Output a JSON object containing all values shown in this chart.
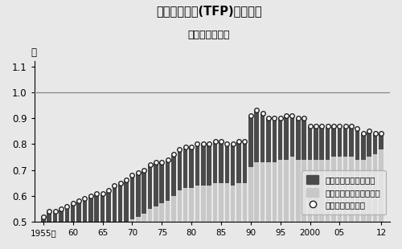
{
  "title_line1": "全要素生産性(TFP)の日米比",
  "title_line2": "（日本／米国）",
  "ylabel": "倍",
  "ylim": [
    0.5,
    1.12
  ],
  "yticks": [
    0.5,
    0.6,
    0.7,
    0.8,
    0.9,
    1.0,
    1.1
  ],
  "xlabel_ticks": [
    "1955年",
    "60",
    "65",
    "70",
    "75",
    "80",
    "85",
    "90",
    "95",
    "2000",
    "05",
    "12"
  ],
  "xlabel_tick_pos": [
    1955,
    1960,
    1965,
    1970,
    1975,
    1980,
    1985,
    1990,
    1995,
    2000,
    2005,
    2012
  ],
  "years": [
    1955,
    1956,
    1957,
    1958,
    1959,
    1960,
    1961,
    1962,
    1963,
    1964,
    1965,
    1966,
    1967,
    1968,
    1969,
    1970,
    1971,
    1972,
    1973,
    1974,
    1975,
    1976,
    1977,
    1978,
    1979,
    1980,
    1981,
    1982,
    1983,
    1984,
    1985,
    1986,
    1987,
    1988,
    1989,
    1990,
    1991,
    1992,
    1993,
    1994,
    1995,
    1996,
    1997,
    1998,
    1999,
    2000,
    2001,
    2002,
    2003,
    2004,
    2005,
    2006,
    2007,
    2008,
    2009,
    2010,
    2011,
    2012
  ],
  "nonmanufacturing": [
    0.32,
    0.33,
    0.33,
    0.34,
    0.35,
    0.36,
    0.37,
    0.38,
    0.39,
    0.4,
    0.41,
    0.42,
    0.44,
    0.46,
    0.48,
    0.51,
    0.52,
    0.53,
    0.55,
    0.56,
    0.57,
    0.58,
    0.6,
    0.62,
    0.63,
    0.63,
    0.64,
    0.64,
    0.64,
    0.65,
    0.65,
    0.65,
    0.64,
    0.65,
    0.65,
    0.71,
    0.73,
    0.73,
    0.73,
    0.73,
    0.74,
    0.74,
    0.75,
    0.74,
    0.74,
    0.74,
    0.74,
    0.74,
    0.74,
    0.75,
    0.75,
    0.75,
    0.75,
    0.74,
    0.74,
    0.75,
    0.76,
    0.78
  ],
  "manufacturing": [
    0.2,
    0.21,
    0.21,
    0.21,
    0.21,
    0.21,
    0.21,
    0.21,
    0.21,
    0.21,
    0.2,
    0.2,
    0.2,
    0.19,
    0.18,
    0.17,
    0.17,
    0.17,
    0.17,
    0.17,
    0.16,
    0.16,
    0.16,
    0.16,
    0.16,
    0.16,
    0.16,
    0.16,
    0.16,
    0.16,
    0.16,
    0.15,
    0.16,
    0.16,
    0.16,
    0.2,
    0.2,
    0.19,
    0.17,
    0.17,
    0.16,
    0.17,
    0.16,
    0.16,
    0.16,
    0.13,
    0.13,
    0.13,
    0.13,
    0.12,
    0.12,
    0.12,
    0.12,
    0.12,
    0.1,
    0.1,
    0.08,
    0.06
  ],
  "total": [
    0.52,
    0.54,
    0.54,
    0.55,
    0.56,
    0.57,
    0.58,
    0.59,
    0.6,
    0.61,
    0.61,
    0.62,
    0.64,
    0.65,
    0.66,
    0.68,
    0.69,
    0.7,
    0.72,
    0.73,
    0.73,
    0.74,
    0.76,
    0.78,
    0.79,
    0.79,
    0.8,
    0.8,
    0.8,
    0.81,
    0.81,
    0.8,
    0.8,
    0.81,
    0.81,
    0.91,
    0.93,
    0.92,
    0.9,
    0.9,
    0.9,
    0.91,
    0.91,
    0.9,
    0.9,
    0.87,
    0.87,
    0.87,
    0.87,
    0.87,
    0.87,
    0.87,
    0.87,
    0.86,
    0.84,
    0.85,
    0.84,
    0.84
  ],
  "background_color": "#e8e8e8",
  "bar_color_manuf": "#4a4a4a",
  "bar_color_nonmanuf": "#c8c8c8",
  "circle_facecolor": "#ffffff",
  "circle_edgecolor": "#222222",
  "legend_label_manuf": "製造業に起因する部分",
  "legend_label_nonmanuf": "非製造業に起因する部分",
  "legend_label_circle": "生産性格差の合計",
  "hline_y": 1.0,
  "bar_width": 0.75
}
